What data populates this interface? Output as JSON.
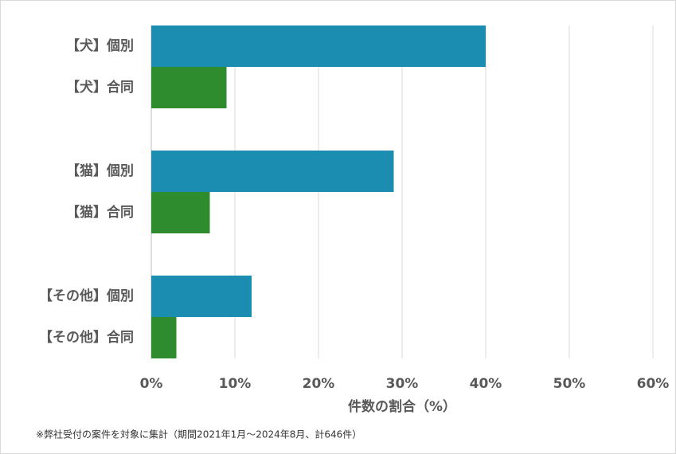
{
  "chart_data": {
    "type": "bar",
    "orientation": "horizontal",
    "categories": [
      "【犬】個別",
      "【犬】合同",
      "【猫】個別",
      "【猫】合同",
      "【その他】個別",
      "【その他】合同"
    ],
    "values": [
      40,
      9,
      29,
      7,
      12,
      3
    ],
    "colors": [
      "#1a8db0",
      "#2e8b2e",
      "#1a8db0",
      "#2e8b2e",
      "#1a8db0",
      "#2e8b2e"
    ],
    "xlim": [
      0,
      60
    ],
    "xticks": [
      {
        "value": 0,
        "label": "0%"
      },
      {
        "value": 10,
        "label": "10%"
      },
      {
        "value": 20,
        "label": "20%"
      },
      {
        "value": 30,
        "label": "30%"
      },
      {
        "value": 40,
        "label": "40%"
      },
      {
        "value": 50,
        "label": "50%"
      },
      {
        "value": 60,
        "label": "60%"
      }
    ],
    "xlabel": "件数の割合（%）",
    "note": "※弊社受付の案件を対象に集計（期間2021年1月～2024年8月、計646件）",
    "grid": true
  }
}
